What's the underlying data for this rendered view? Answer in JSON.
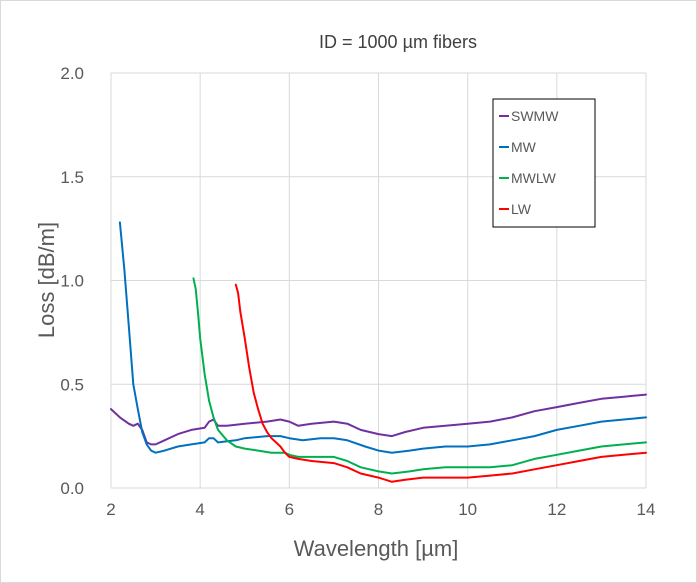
{
  "chart_data": {
    "type": "line",
    "title": "ID = 1000 µm fibers",
    "xlabel": "Wavelength [µm]",
    "ylabel": "Loss [dB/m]",
    "xlim": [
      2,
      14
    ],
    "ylim": [
      0,
      2
    ],
    "x_ticks": [
      "2",
      "4",
      "6",
      "8",
      "10",
      "12",
      "14"
    ],
    "y_ticks": [
      "0.0",
      "0.5",
      "1.0",
      "1.5",
      "2.0"
    ],
    "grid": true,
    "legend_position": "top-right",
    "series": [
      {
        "name": "SWMW",
        "color": "#7030A0",
        "points": [
          [
            2.0,
            0.38
          ],
          [
            2.2,
            0.34
          ],
          [
            2.4,
            0.31
          ],
          [
            2.5,
            0.3
          ],
          [
            2.6,
            0.31
          ],
          [
            2.7,
            0.28
          ],
          [
            2.8,
            0.22
          ],
          [
            2.9,
            0.21
          ],
          [
            3.0,
            0.21
          ],
          [
            3.2,
            0.23
          ],
          [
            3.5,
            0.26
          ],
          [
            3.8,
            0.28
          ],
          [
            4.1,
            0.29
          ],
          [
            4.2,
            0.32
          ],
          [
            4.3,
            0.33
          ],
          [
            4.4,
            0.3
          ],
          [
            4.6,
            0.3
          ],
          [
            5.0,
            0.31
          ],
          [
            5.5,
            0.32
          ],
          [
            5.8,
            0.33
          ],
          [
            6.0,
            0.32
          ],
          [
            6.2,
            0.3
          ],
          [
            6.5,
            0.31
          ],
          [
            7.0,
            0.32
          ],
          [
            7.3,
            0.31
          ],
          [
            7.6,
            0.28
          ],
          [
            8.0,
            0.26
          ],
          [
            8.3,
            0.25
          ],
          [
            8.6,
            0.27
          ],
          [
            9.0,
            0.29
          ],
          [
            9.5,
            0.3
          ],
          [
            10.0,
            0.31
          ],
          [
            10.5,
            0.32
          ],
          [
            11.0,
            0.34
          ],
          [
            11.5,
            0.37
          ],
          [
            12.0,
            0.39
          ],
          [
            12.5,
            0.41
          ],
          [
            13.0,
            0.43
          ],
          [
            13.5,
            0.44
          ],
          [
            14.0,
            0.45
          ]
        ]
      },
      {
        "name": "MW",
        "color": "#0070C0",
        "points": [
          [
            2.2,
            1.28
          ],
          [
            2.3,
            1.05
          ],
          [
            2.4,
            0.78
          ],
          [
            2.5,
            0.5
          ],
          [
            2.6,
            0.38
          ],
          [
            2.7,
            0.27
          ],
          [
            2.8,
            0.21
          ],
          [
            2.9,
            0.18
          ],
          [
            3.0,
            0.17
          ],
          [
            3.2,
            0.18
          ],
          [
            3.5,
            0.2
          ],
          [
            3.8,
            0.21
          ],
          [
            4.1,
            0.22
          ],
          [
            4.2,
            0.24
          ],
          [
            4.3,
            0.24
          ],
          [
            4.4,
            0.22
          ],
          [
            4.8,
            0.23
          ],
          [
            5.0,
            0.24
          ],
          [
            5.5,
            0.25
          ],
          [
            5.8,
            0.25
          ],
          [
            6.0,
            0.24
          ],
          [
            6.3,
            0.23
          ],
          [
            6.7,
            0.24
          ],
          [
            7.0,
            0.24
          ],
          [
            7.3,
            0.23
          ],
          [
            7.7,
            0.2
          ],
          [
            8.0,
            0.18
          ],
          [
            8.3,
            0.17
          ],
          [
            8.7,
            0.18
          ],
          [
            9.0,
            0.19
          ],
          [
            9.5,
            0.2
          ],
          [
            10.0,
            0.2
          ],
          [
            10.5,
            0.21
          ],
          [
            11.0,
            0.23
          ],
          [
            11.5,
            0.25
          ],
          [
            12.0,
            0.28
          ],
          [
            12.5,
            0.3
          ],
          [
            13.0,
            0.32
          ],
          [
            13.5,
            0.33
          ],
          [
            14.0,
            0.34
          ]
        ]
      },
      {
        "name": "MWLW",
        "color": "#00B050",
        "points": [
          [
            3.85,
            1.01
          ],
          [
            3.9,
            0.96
          ],
          [
            3.95,
            0.85
          ],
          [
            4.0,
            0.72
          ],
          [
            4.1,
            0.55
          ],
          [
            4.2,
            0.42
          ],
          [
            4.3,
            0.34
          ],
          [
            4.4,
            0.28
          ],
          [
            4.6,
            0.23
          ],
          [
            4.8,
            0.2
          ],
          [
            5.0,
            0.19
          ],
          [
            5.3,
            0.18
          ],
          [
            5.6,
            0.17
          ],
          [
            5.9,
            0.17
          ],
          [
            6.0,
            0.16
          ],
          [
            6.2,
            0.15
          ],
          [
            6.5,
            0.15
          ],
          [
            7.0,
            0.15
          ],
          [
            7.3,
            0.13
          ],
          [
            7.6,
            0.1
          ],
          [
            8.0,
            0.08
          ],
          [
            8.3,
            0.07
          ],
          [
            8.7,
            0.08
          ],
          [
            9.0,
            0.09
          ],
          [
            9.5,
            0.1
          ],
          [
            10.0,
            0.1
          ],
          [
            10.5,
            0.1
          ],
          [
            11.0,
            0.11
          ],
          [
            11.5,
            0.14
          ],
          [
            12.0,
            0.16
          ],
          [
            12.5,
            0.18
          ],
          [
            13.0,
            0.2
          ],
          [
            13.5,
            0.21
          ],
          [
            14.0,
            0.22
          ]
        ]
      },
      {
        "name": "LW",
        "color": "#FF0000",
        "points": [
          [
            4.8,
            0.98
          ],
          [
            4.85,
            0.94
          ],
          [
            4.9,
            0.85
          ],
          [
            5.0,
            0.72
          ],
          [
            5.1,
            0.58
          ],
          [
            5.2,
            0.46
          ],
          [
            5.3,
            0.38
          ],
          [
            5.4,
            0.31
          ],
          [
            5.5,
            0.27
          ],
          [
            5.6,
            0.24
          ],
          [
            5.7,
            0.22
          ],
          [
            5.8,
            0.2
          ],
          [
            5.9,
            0.17
          ],
          [
            6.0,
            0.15
          ],
          [
            6.2,
            0.14
          ],
          [
            6.5,
            0.13
          ],
          [
            7.0,
            0.12
          ],
          [
            7.3,
            0.1
          ],
          [
            7.6,
            0.07
          ],
          [
            8.0,
            0.05
          ],
          [
            8.3,
            0.03
          ],
          [
            8.6,
            0.04
          ],
          [
            9.0,
            0.05
          ],
          [
            9.5,
            0.05
          ],
          [
            10.0,
            0.05
          ],
          [
            10.5,
            0.06
          ],
          [
            11.0,
            0.07
          ],
          [
            11.5,
            0.09
          ],
          [
            12.0,
            0.11
          ],
          [
            12.5,
            0.13
          ],
          [
            13.0,
            0.15
          ],
          [
            13.5,
            0.16
          ],
          [
            14.0,
            0.17
          ]
        ]
      }
    ]
  }
}
